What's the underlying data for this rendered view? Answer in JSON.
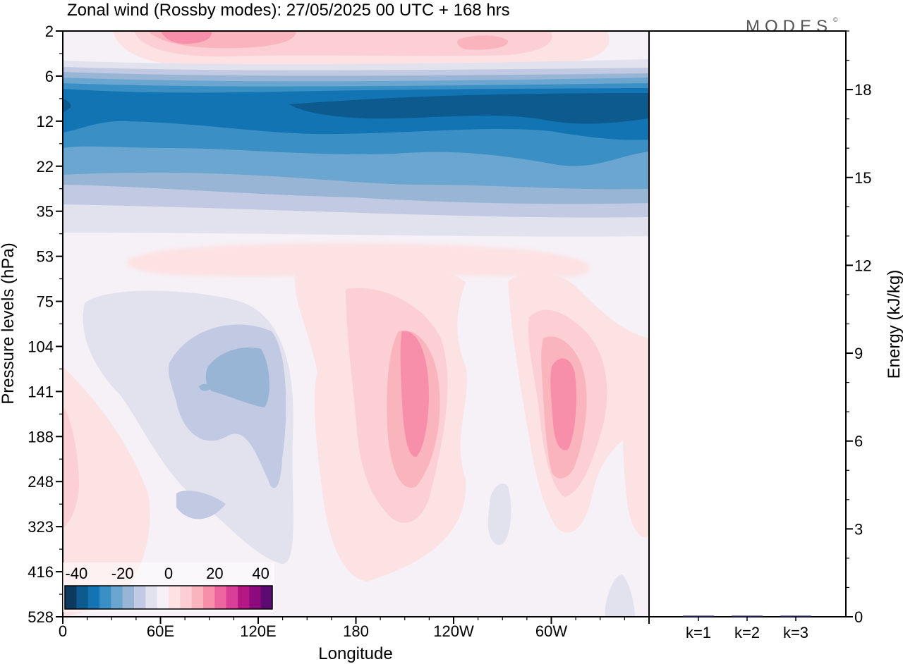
{
  "page": {
    "title": "Zonal wind (Rossby modes):  27/05/2025  00 UTC  + 168 hrs",
    "brand": "MODES",
    "brand_mark": "©"
  },
  "chart_data": [
    {
      "type": "heatmap",
      "variable": "Zonal wind",
      "xlabel": "Longitude",
      "ylabel": "Pressure levels (hPa)",
      "x_ticks": [
        "0",
        "60E",
        "120E",
        "180",
        "120W",
        "60W"
      ],
      "x_tick_values": [
        0,
        60,
        120,
        180,
        240,
        300
      ],
      "xlim": [
        0,
        360
      ],
      "y_ticks": [
        "2",
        "6",
        "12",
        "22",
        "35",
        "53",
        "75",
        "104",
        "141",
        "188",
        "248",
        "323",
        "416",
        "528"
      ],
      "y_scale": "categorical pressure levels, top = 2 hPa",
      "colorbar": {
        "tick_labels": [
          "-40",
          "-20",
          "0",
          "20",
          "40"
        ],
        "tick_values": [
          -40,
          -20,
          0,
          20,
          40
        ],
        "colors": [
          "#0b3a5e",
          "#0c5a8e",
          "#1274b2",
          "#3a8fc4",
          "#6aa6cf",
          "#98b5d6",
          "#c2c9e2",
          "#e2e1ee",
          "#f6f1f7",
          "#fce2e3",
          "#fbcfd3",
          "#f9b4be",
          "#f78faa",
          "#ee66a0",
          "#d93f96",
          "#b51785",
          "#8c0a7c",
          "#5e0a73"
        ]
      },
      "features": [
        {
          "name": "upper-level band",
          "pressure_range_hPa": [
            2,
            6
          ],
          "sign": "positive",
          "max_approx": 10
        },
        {
          "name": "stratospheric easterly band",
          "pressure_range_hPa": [
            6,
            35
          ],
          "sign": "negative",
          "min_approx": -35
        },
        {
          "name": "negative cell near 120E",
          "lon_center": 95,
          "pressure_hPa": 130,
          "sign": "negative",
          "min_approx": -15
        },
        {
          "name": "positive cell near 155W",
          "lon_center": 205,
          "pressure_hPa": 140,
          "sign": "positive",
          "max_approx": 20
        },
        {
          "name": "positive cell near 65W",
          "lon_center": 295,
          "pressure_hPa": 140,
          "sign": "positive",
          "max_approx": 20
        }
      ]
    },
    {
      "type": "bar",
      "categories": [
        "k=1",
        "k=2",
        "k=3"
      ],
      "values": [
        0.03,
        0.01,
        0.01
      ],
      "ylabel": "Energy (kJ/kg)",
      "ylim": [
        0,
        20
      ],
      "y_ticks": [
        "0",
        "3",
        "6",
        "9",
        "12",
        "15",
        "18"
      ],
      "y_tick_values": [
        0,
        3,
        6,
        9,
        12,
        15,
        18
      ],
      "bar_color": "#1a1a60"
    }
  ]
}
